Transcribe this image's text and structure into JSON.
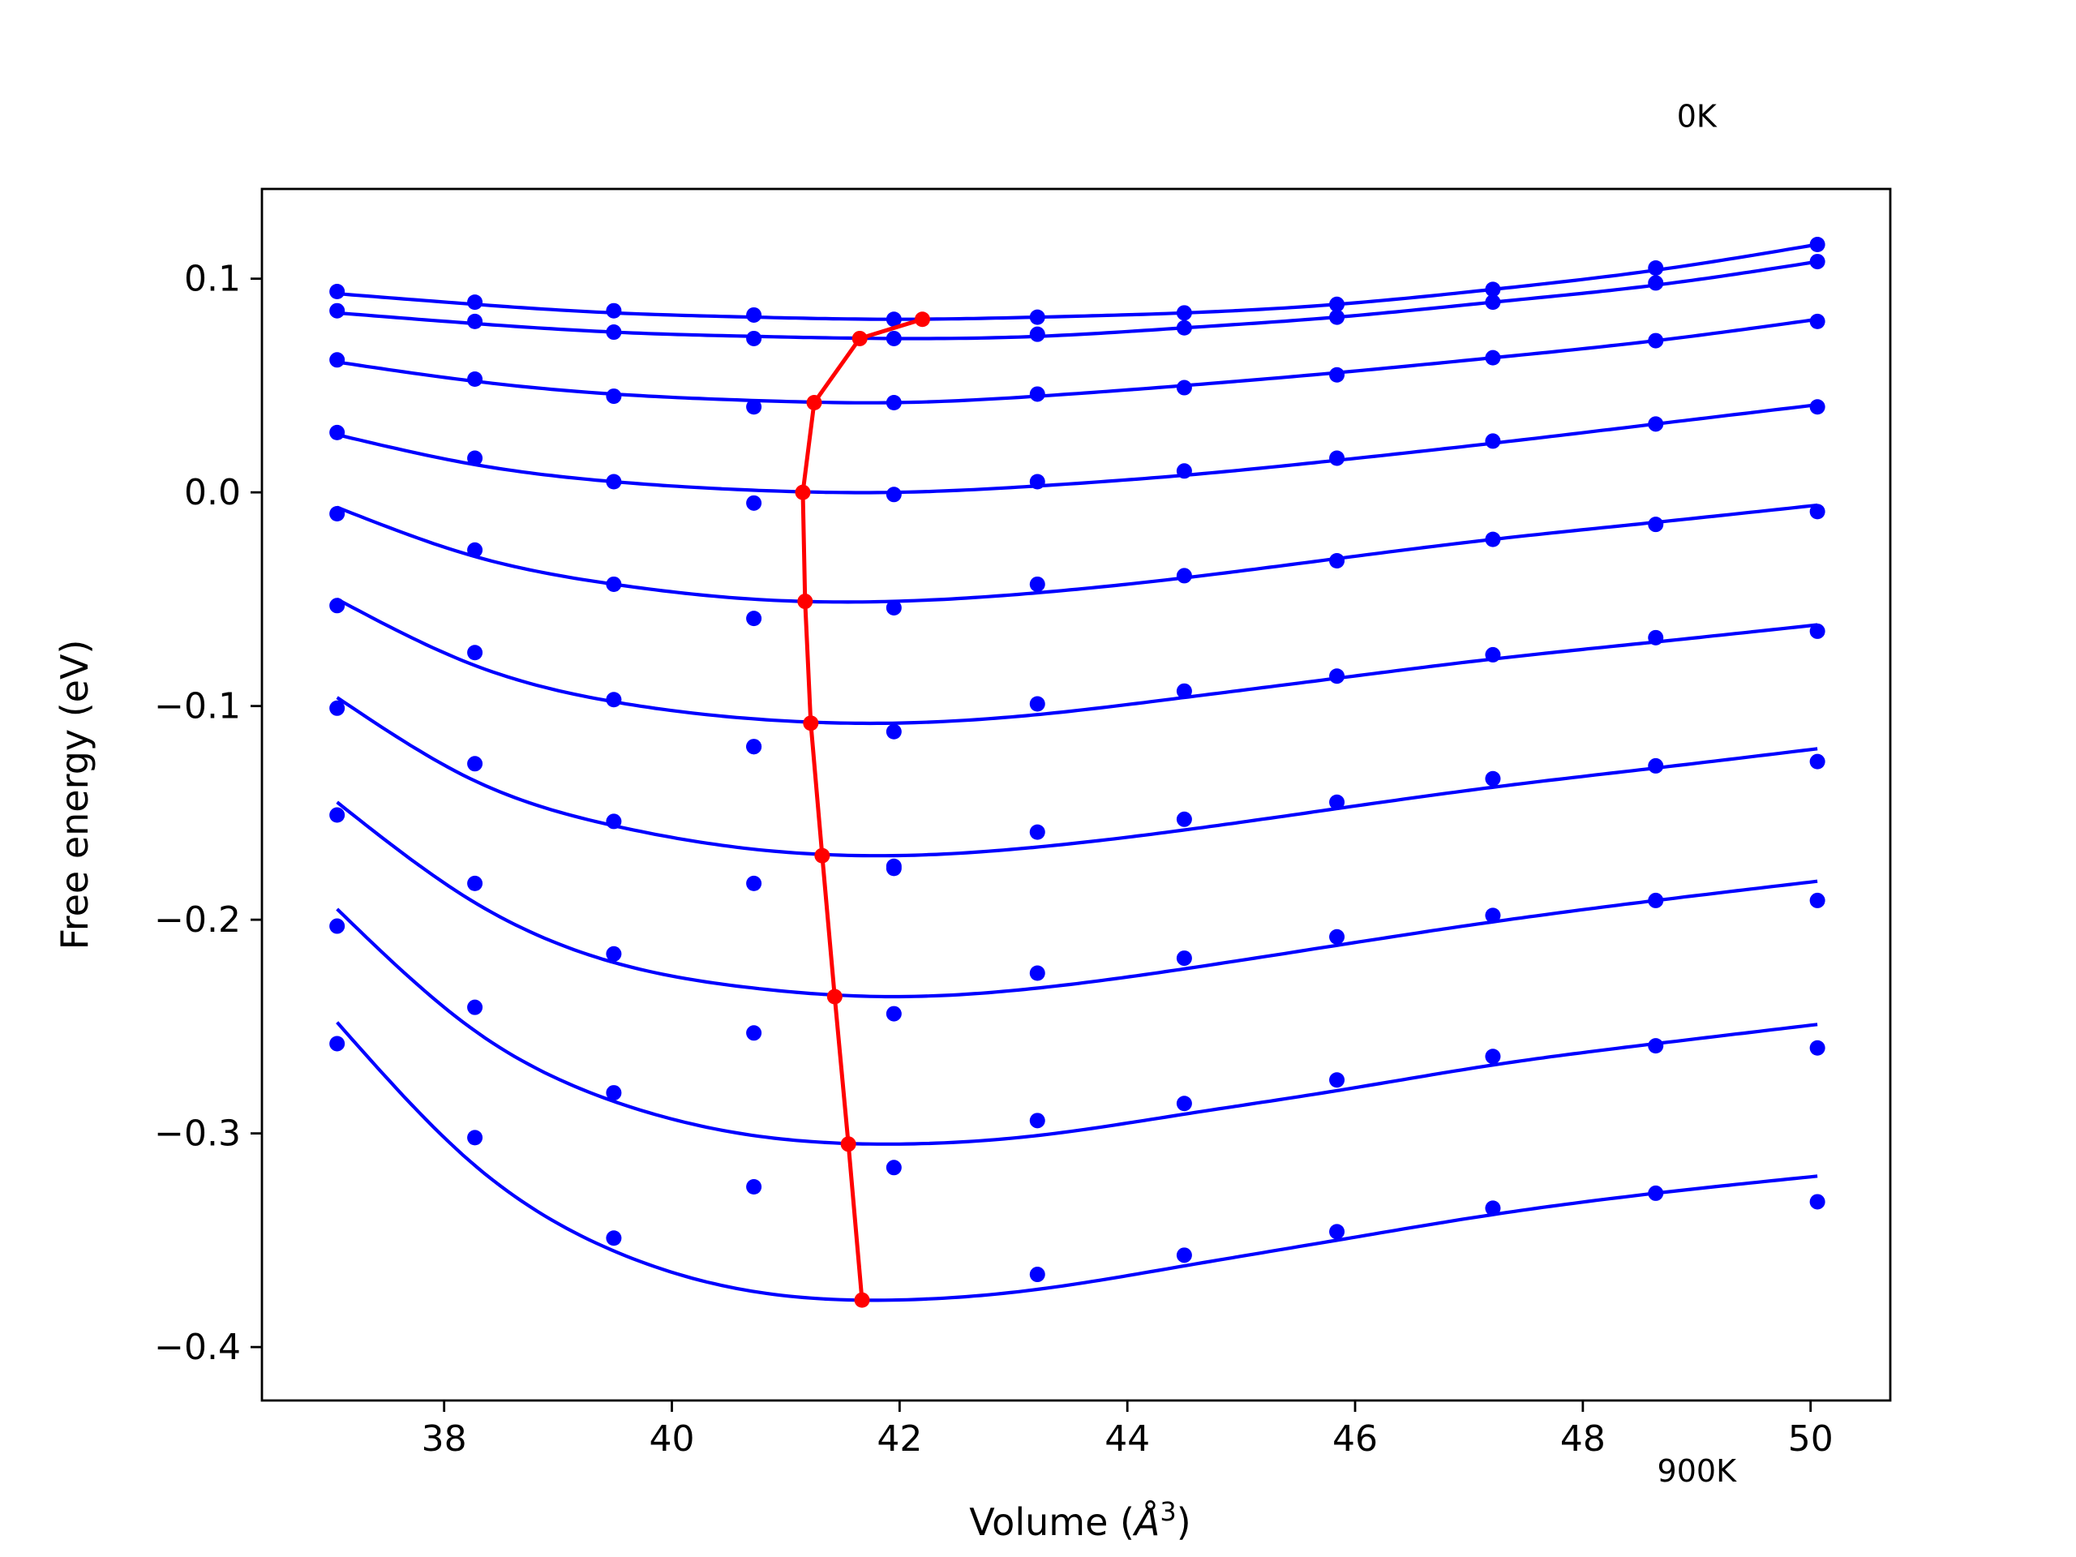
{
  "chart_data": {
    "type": "line",
    "title": "",
    "xlabel": "Volume ($\\AA^3$)",
    "xlabel_display": {
      "prefix": "Volume (",
      "symbol": "Å",
      "superscript": "3",
      "suffix": ")"
    },
    "ylabel": "Free energy (eV)",
    "xlim": [
      36.4,
      50.7
    ],
    "ylim": [
      -0.425,
      0.142
    ],
    "xticks": [
      38,
      40,
      42,
      44,
      46,
      48,
      50
    ],
    "xtick_labels": [
      "38",
      "40",
      "42",
      "44",
      "46",
      "48",
      "50"
    ],
    "yticks": [
      -0.4,
      -0.3,
      -0.2,
      -0.1,
      0.0,
      0.1
    ],
    "ytick_labels": [
      "−0.4",
      "−0.3",
      "−0.2",
      "−0.1",
      "0.0",
      "0.1"
    ],
    "annotations": [
      {
        "text": "0K",
        "x": 49.0,
        "y": 0.171
      },
      {
        "text": "900K",
        "x": 49.0,
        "y": -0.463
      }
    ],
    "colors": {
      "data": "#0000ff",
      "fit": "#0000ff",
      "minimum": "#ff0000"
    },
    "volumes": [
      37.06,
      38.27,
      39.49,
      40.72,
      41.95,
      43.21,
      44.5,
      45.84,
      47.21,
      48.64,
      50.06
    ],
    "series": [
      {
        "points": [
          0.094,
          0.089,
          0.085,
          0.083,
          0.081,
          0.082,
          0.084,
          0.088,
          0.095,
          0.105,
          0.116
        ],
        "fit": [
          0.093,
          0.088,
          0.084,
          0.082,
          0.081,
          0.082,
          0.084,
          0.088,
          0.095,
          0.104,
          0.116
        ]
      },
      {
        "points": [
          0.085,
          0.08,
          0.075,
          0.072,
          0.072,
          0.074,
          0.077,
          0.082,
          0.089,
          0.098,
          0.108
        ],
        "fit": [
          0.084,
          0.079,
          0.075,
          0.073,
          0.072,
          0.073,
          0.077,
          0.082,
          0.089,
          0.097,
          0.108
        ]
      },
      {
        "points": [
          0.062,
          0.053,
          0.045,
          0.04,
          0.042,
          0.046,
          0.049,
          0.055,
          0.063,
          0.071,
          0.08
        ],
        "fit": [
          0.061,
          0.052,
          0.046,
          0.043,
          0.042,
          0.045,
          0.05,
          0.056,
          0.063,
          0.071,
          0.081
        ]
      },
      {
        "points": [
          0.028,
          0.016,
          0.005,
          -0.005,
          -0.001,
          0.005,
          0.01,
          0.016,
          0.024,
          0.032,
          0.04
        ],
        "fit": [
          0.027,
          0.013,
          0.005,
          0.001,
          0.0,
          0.003,
          0.008,
          0.015,
          0.023,
          0.032,
          0.041
        ]
      },
      {
        "points": [
          -0.01,
          -0.027,
          -0.043,
          -0.059,
          -0.054,
          -0.043,
          -0.039,
          -0.032,
          -0.022,
          -0.015,
          -0.009
        ],
        "fit": [
          -0.007,
          -0.03,
          -0.043,
          -0.05,
          -0.051,
          -0.047,
          -0.04,
          -0.031,
          -0.022,
          -0.014,
          -0.006
        ]
      },
      {
        "points": [
          -0.053,
          -0.075,
          -0.097,
          -0.119,
          -0.112,
          -0.099,
          -0.093,
          -0.086,
          -0.076,
          -0.068,
          -0.065
        ],
        "fit": [
          -0.05,
          -0.081,
          -0.098,
          -0.106,
          -0.108,
          -0.104,
          -0.096,
          -0.087,
          -0.078,
          -0.07,
          -0.062
        ]
      },
      {
        "points": [
          -0.101,
          -0.127,
          -0.154,
          -0.119,
          -0.175,
          -0.159,
          -0.153,
          -0.145,
          -0.134,
          -0.128,
          -0.126
        ],
        "fit": [
          -0.096,
          -0.135,
          -0.156,
          -0.167,
          -0.17,
          -0.166,
          -0.158,
          -0.148,
          -0.138,
          -0.129,
          -0.12
        ]
      },
      {
        "points": [
          -0.151,
          -0.183,
          -0.216,
          -0.183,
          -0.176,
          -0.225,
          -0.218,
          -0.208,
          -0.198,
          -0.191,
          -0.191
        ],
        "fit": [
          -0.145,
          -0.192,
          -0.22,
          -0.232,
          -0.236,
          -0.232,
          -0.223,
          -0.212,
          -0.201,
          -0.191,
          -0.182
        ]
      },
      {
        "points": [
          -0.203,
          -0.241,
          -0.281,
          -0.253,
          -0.244,
          -0.294,
          -0.286,
          -0.275,
          -0.264,
          -0.259,
          -0.26
        ],
        "fit": [
          -0.195,
          -0.252,
          -0.285,
          -0.301,
          -0.305,
          -0.301,
          -0.291,
          -0.28,
          -0.268,
          -0.258,
          -0.249
        ]
      },
      {
        "points": [
          -0.258,
          -0.302,
          -0.349,
          -0.325,
          -0.316,
          -0.366,
          -0.357,
          -0.346,
          -0.335,
          -0.328,
          -0.332
        ],
        "fit": [
          -0.248,
          -0.315,
          -0.355,
          -0.374,
          -0.378,
          -0.373,
          -0.362,
          -0.35,
          -0.338,
          -0.328,
          -0.32
        ]
      }
    ],
    "minimum_path": {
      "x": [
        42.2,
        41.65,
        41.25,
        41.15,
        41.17,
        41.22,
        41.32,
        41.43,
        41.55,
        41.67
      ],
      "y": [
        0.081,
        0.072,
        0.042,
        0.0,
        -0.051,
        -0.108,
        -0.17,
        -0.236,
        -0.305,
        -0.378
      ]
    }
  }
}
